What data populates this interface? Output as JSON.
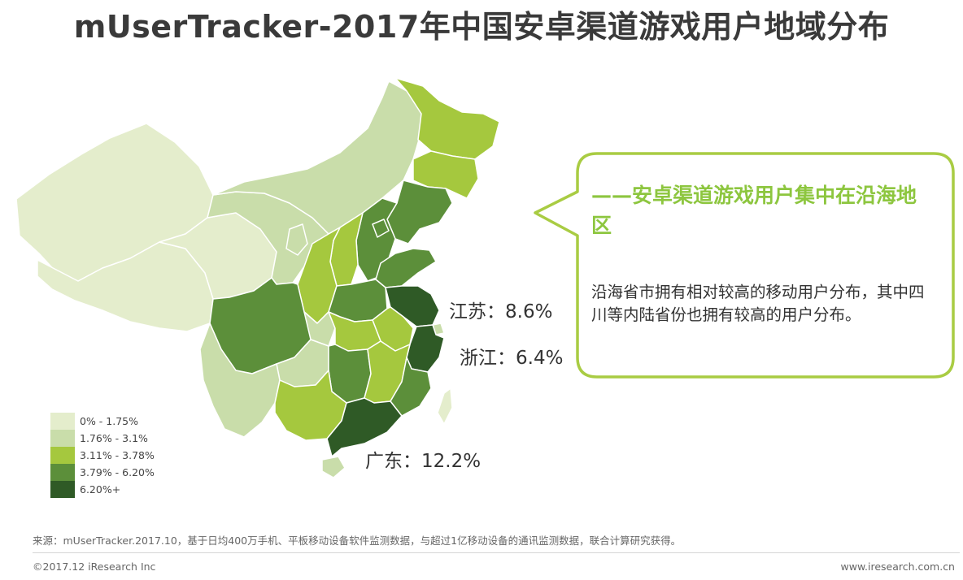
{
  "title": "mUserTracker-2017年中国安卓渠道游戏用户地域分布",
  "colors": {
    "level_1": "#e4edcc",
    "level_2": "#c9ddaa",
    "level_3": "#a5c83e",
    "level_4": "#5c8f3a",
    "level_5": "#2f5a26",
    "callout_border": "#a9cc43",
    "heading_green": "#8dc63f"
  },
  "legend": [
    {
      "label": "0% - 1.75%",
      "color": "#e4edcc"
    },
    {
      "label": "1.76% - 3.1%",
      "color": "#c9ddaa"
    },
    {
      "label": "3.11% - 3.78%",
      "color": "#a5c83e"
    },
    {
      "label": "3.79% - 6.20%",
      "color": "#5c8f3a"
    },
    {
      "label": "6.20%+",
      "color": "#2f5a26"
    }
  ],
  "region_labels": {
    "jiangsu": "江苏：8.6%",
    "zhejiang": "浙江：6.4%",
    "guangdong": "广东：12.2%"
  },
  "callout": {
    "heading": "——安卓渠道游戏用户集中在沿海地区",
    "body": "沿海省市拥有相对较高的移动用户分布，其中四川等内陆省份也拥有较高的用户分布。"
  },
  "footer": {
    "source": "来源：mUserTracker.2017.10，基于日均400万手机、平板移动设备软件监测数据，与超过1亿移动设备的通讯监测数据，联合计算研究获得。",
    "copyright": "©2017.12 iResearch Inc",
    "website": "www.iresearch.com.cn"
  }
}
